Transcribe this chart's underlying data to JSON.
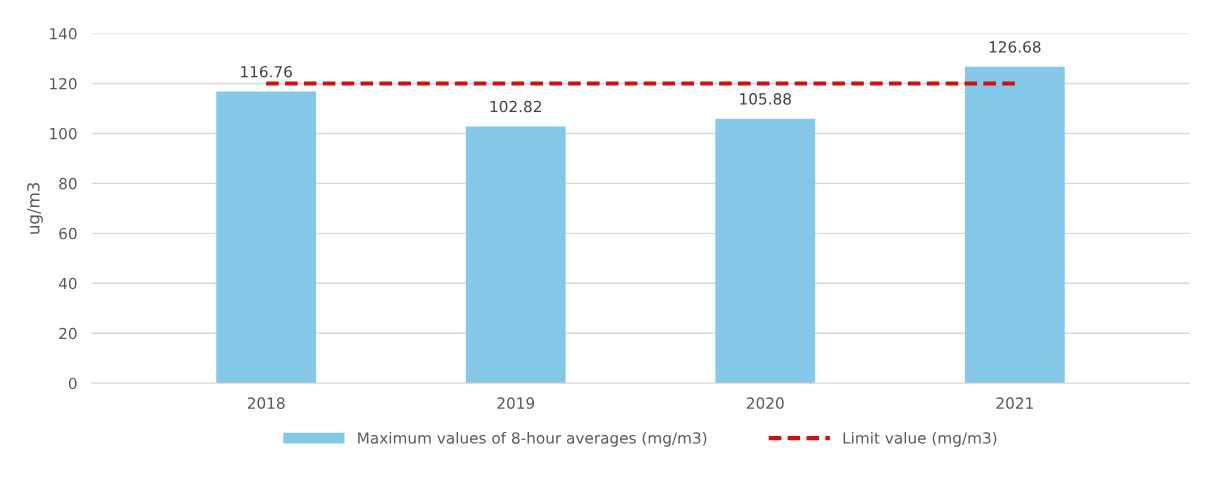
{
  "chart_data": {
    "type": "bar",
    "ylabel": "ug/m3",
    "categories": [
      "2018",
      "2019",
      "2020",
      "2021"
    ],
    "series": [
      {
        "name": "Maximum values of 8-hour averages (mg/m3)",
        "color": "#85c8e8",
        "values": [
          116.76,
          102.82,
          105.88,
          126.68
        ],
        "value_labels": [
          "116.76",
          "102.82",
          "105.88",
          "126.68"
        ]
      },
      {
        "name": "Limit value (mg/m3)",
        "type": "line",
        "color": "#d01010",
        "line_style": "dashed",
        "values": [
          120,
          120,
          120,
          120
        ]
      }
    ],
    "ylim": [
      0,
      140
    ],
    "yticks": [
      0,
      20,
      40,
      60,
      80,
      100,
      120,
      140
    ],
    "grid": "y",
    "legend": "bottom"
  }
}
